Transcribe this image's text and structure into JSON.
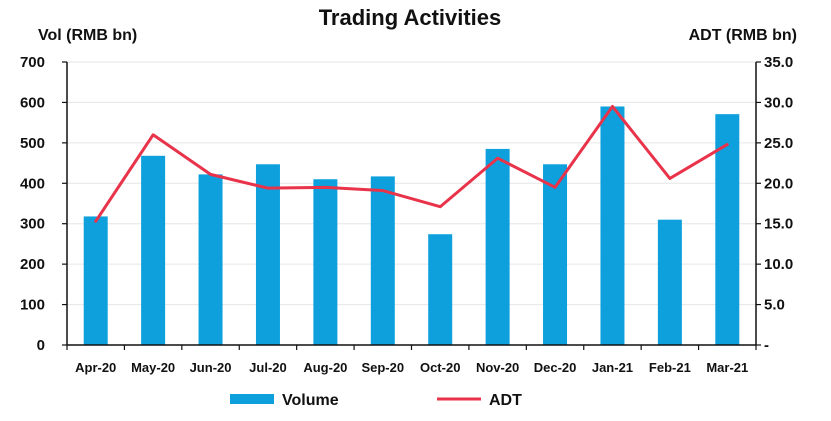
{
  "chart_data": {
    "type": "bar",
    "title": "Trading Activities",
    "ylabel_left": "Vol (RMB bn)",
    "ylabel_right": "ADT (RMB bn)",
    "categories": [
      "Apr-20",
      "May-20",
      "Jun-20",
      "Jul-20",
      "Aug-20",
      "Sep-20",
      "Oct-20",
      "Nov-20",
      "Dec-20",
      "Jan-21",
      "Feb-21",
      "Mar-21"
    ],
    "series": [
      {
        "name": "Volume",
        "type": "bar",
        "axis": "left",
        "color": "#0da0dd",
        "values": [
          318,
          468,
          422,
          447,
          410,
          417,
          274,
          485,
          447,
          590,
          310,
          571
        ]
      },
      {
        "name": "ADT",
        "type": "line",
        "axis": "right",
        "color": "#e8334a",
        "values": [
          15.3,
          26.0,
          21.1,
          19.4,
          19.5,
          19.1,
          17.1,
          23.1,
          19.5,
          29.5,
          20.6,
          24.8
        ]
      }
    ],
    "ylim_left": [
      0,
      700
    ],
    "ylim_right": [
      0,
      35
    ],
    "yticks_left": [
      "0",
      "100",
      "200",
      "300",
      "400",
      "500",
      "600",
      "700"
    ],
    "yticks_right": [
      "-",
      "5.0",
      "10.0",
      "15.0",
      "20.0",
      "25.0",
      "30.0",
      "35.0"
    ],
    "grid": true,
    "legend_position": "bottom"
  }
}
